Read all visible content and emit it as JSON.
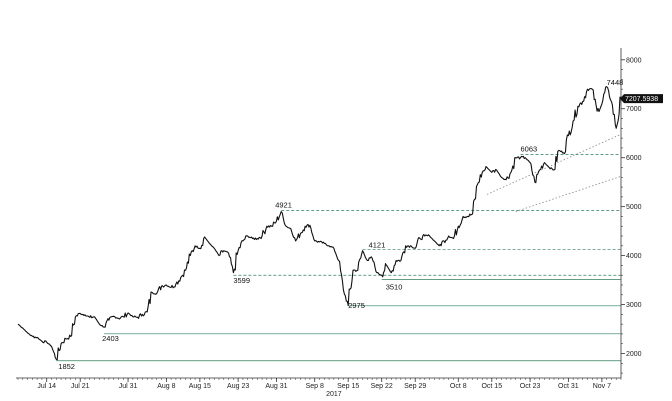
{
  "chart_data": {
    "type": "line",
    "title": "",
    "xlabel": "",
    "ylabel": "",
    "year_label": "2017",
    "ylim": [
      1500,
      8200
    ],
    "xlim": [
      "2017-07-08",
      "2017-11-11"
    ],
    "yticks": [
      2000,
      3000,
      4000,
      5000,
      6000,
      7000,
      8000
    ],
    "xticks": [
      {
        "date": "2017-07-14",
        "label": "Jul 14"
      },
      {
        "date": "2017-07-21",
        "label": "Jul 21"
      },
      {
        "date": "2017-07-31",
        "label": "Jul 31"
      },
      {
        "date": "2017-08-08",
        "label": "Aug 8"
      },
      {
        "date": "2017-08-15",
        "label": "Aug 15"
      },
      {
        "date": "2017-08-23",
        "label": "Aug 23"
      },
      {
        "date": "2017-08-31",
        "label": "Aug 31"
      },
      {
        "date": "2017-09-08",
        "label": "Sep 8"
      },
      {
        "date": "2017-09-15",
        "label": "Sep 15"
      },
      {
        "date": "2017-09-22",
        "label": "Sep 22"
      },
      {
        "date": "2017-09-29",
        "label": "Sep 29"
      },
      {
        "date": "2017-10-08",
        "label": "Oct 8"
      },
      {
        "date": "2017-10-15",
        "label": "Oct 15"
      },
      {
        "date": "2017-10-23",
        "label": "Oct 23"
      },
      {
        "date": "2017-10-31",
        "label": "Oct 31"
      },
      {
        "date": "2017-11-07",
        "label": "Nov 7"
      }
    ],
    "series": [
      {
        "values": [
          [
            "2017-07-08",
            2600
          ],
          [
            "2017-07-09",
            2520
          ],
          [
            "2017-07-10",
            2420
          ],
          [
            "2017-07-11",
            2350
          ],
          [
            "2017-07-12",
            2330
          ],
          [
            "2017-07-13",
            2250
          ],
          [
            "2017-07-14",
            2230
          ],
          [
            "2017-07-15",
            2150
          ],
          [
            "2017-07-16",
            1880
          ],
          [
            "2017-07-17",
            2200
          ],
          [
            "2017-07-18",
            2300
          ],
          [
            "2017-07-19",
            2350
          ],
          [
            "2017-07-20",
            2750
          ],
          [
            "2017-07-21",
            2820
          ],
          [
            "2017-07-22",
            2790
          ],
          [
            "2017-07-23",
            2740
          ],
          [
            "2017-07-24",
            2750
          ],
          [
            "2017-07-25",
            2600
          ],
          [
            "2017-07-26",
            2540
          ],
          [
            "2017-07-27",
            2680
          ],
          [
            "2017-07-28",
            2760
          ],
          [
            "2017-07-29",
            2720
          ],
          [
            "2017-07-30",
            2750
          ],
          [
            "2017-07-31",
            2830
          ],
          [
            "2017-08-01",
            2750
          ],
          [
            "2017-08-02",
            2740
          ],
          [
            "2017-08-03",
            2800
          ],
          [
            "2017-08-04",
            2850
          ],
          [
            "2017-08-05",
            3250
          ],
          [
            "2017-08-06",
            3230
          ],
          [
            "2017-08-07",
            3380
          ],
          [
            "2017-08-08",
            3400
          ],
          [
            "2017-08-09",
            3350
          ],
          [
            "2017-08-10",
            3420
          ],
          [
            "2017-08-11",
            3550
          ],
          [
            "2017-08-12",
            3700
          ],
          [
            "2017-08-13",
            4000
          ],
          [
            "2017-08-14",
            4200
          ],
          [
            "2017-08-15",
            4150
          ],
          [
            "2017-08-16",
            4380
          ],
          [
            "2017-08-17",
            4250
          ],
          [
            "2017-08-18",
            4150
          ],
          [
            "2017-08-19",
            4000
          ],
          [
            "2017-08-20",
            4100
          ],
          [
            "2017-08-21",
            4050
          ],
          [
            "2017-08-22",
            3650
          ],
          [
            "2017-08-23",
            4100
          ],
          [
            "2017-08-24",
            4300
          ],
          [
            "2017-08-25",
            4400
          ],
          [
            "2017-08-26",
            4350
          ],
          [
            "2017-08-27",
            4350
          ],
          [
            "2017-08-28",
            4400
          ],
          [
            "2017-08-29",
            4600
          ],
          [
            "2017-08-30",
            4600
          ],
          [
            "2017-08-31",
            4700
          ],
          [
            "2017-09-01",
            4900
          ],
          [
            "2017-09-02",
            4600
          ],
          [
            "2017-09-03",
            4550
          ],
          [
            "2017-09-04",
            4300
          ],
          [
            "2017-09-05",
            4450
          ],
          [
            "2017-09-06",
            4600
          ],
          [
            "2017-09-07",
            4620
          ],
          [
            "2017-09-08",
            4300
          ],
          [
            "2017-09-09",
            4280
          ],
          [
            "2017-09-10",
            4250
          ],
          [
            "2017-09-11",
            4200
          ],
          [
            "2017-09-12",
            4150
          ],
          [
            "2017-09-13",
            3900
          ],
          [
            "2017-09-14",
            3300
          ],
          [
            "2017-09-15",
            2980
          ],
          [
            "2017-09-16",
            3700
          ],
          [
            "2017-09-17",
            3700
          ],
          [
            "2017-09-18",
            4100
          ],
          [
            "2017-09-19",
            3900
          ],
          [
            "2017-09-20",
            3950
          ],
          [
            "2017-09-21",
            3650
          ],
          [
            "2017-09-22",
            3600
          ],
          [
            "2017-09-23",
            3800
          ],
          [
            "2017-09-24",
            3650
          ],
          [
            "2017-09-25",
            3900
          ],
          [
            "2017-09-26",
            3900
          ],
          [
            "2017-09-27",
            4200
          ],
          [
            "2017-09-28",
            4200
          ],
          [
            "2017-09-29",
            4150
          ],
          [
            "2017-09-30",
            4350
          ],
          [
            "2017-10-01",
            4400
          ],
          [
            "2017-10-02",
            4400
          ],
          [
            "2017-10-03",
            4300
          ],
          [
            "2017-10-04",
            4200
          ],
          [
            "2017-10-05",
            4300
          ],
          [
            "2017-10-06",
            4400
          ],
          [
            "2017-10-07",
            4350
          ],
          [
            "2017-10-08",
            4600
          ],
          [
            "2017-10-09",
            4800
          ],
          [
            "2017-10-10",
            4800
          ],
          [
            "2017-10-11",
            4850
          ],
          [
            "2017-10-12",
            5450
          ],
          [
            "2017-10-13",
            5700
          ],
          [
            "2017-10-14",
            5800
          ],
          [
            "2017-10-15",
            5700
          ],
          [
            "2017-10-16",
            5750
          ],
          [
            "2017-10-17",
            5600
          ],
          [
            "2017-10-18",
            5550
          ],
          [
            "2017-10-19",
            5700
          ],
          [
            "2017-10-20",
            6000
          ],
          [
            "2017-10-21",
            6000
          ],
          [
            "2017-10-22",
            6000
          ],
          [
            "2017-10-23",
            5900
          ],
          [
            "2017-10-24",
            5500
          ],
          [
            "2017-10-25",
            5750
          ],
          [
            "2017-10-26",
            5900
          ],
          [
            "2017-10-27",
            5800
          ],
          [
            "2017-10-28",
            5750
          ],
          [
            "2017-10-29",
            6150
          ],
          [
            "2017-10-30",
            6100
          ],
          [
            "2017-10-31",
            6450
          ],
          [
            "2017-11-01",
            6750
          ],
          [
            "2017-11-02",
            7050
          ],
          [
            "2017-11-03",
            7150
          ],
          [
            "2017-11-04",
            7400
          ],
          [
            "2017-11-05",
            7400
          ],
          [
            "2017-11-06",
            6950
          ],
          [
            "2017-11-07",
            7100
          ],
          [
            "2017-11-08",
            7450
          ],
          [
            "2017-11-09",
            7150
          ],
          [
            "2017-11-10",
            6600
          ],
          [
            "2017-11-11",
            7208
          ]
        ]
      }
    ],
    "support_levels": [
      {
        "value": 1852,
        "style": "solid",
        "color": "#2e7d5b"
      },
      {
        "value": 2403,
        "style": "solid",
        "color": "#2e7d5b"
      },
      {
        "value": 2975,
        "style": "solid",
        "color": "#2e7d5b"
      },
      {
        "value": 3510,
        "style": "solid",
        "color": "#2e7d5b"
      },
      {
        "value": 3599,
        "style": "dashed",
        "color": "#2e7d5b"
      },
      {
        "value": 4121,
        "style": "dashed",
        "color": "#2e7d5b"
      },
      {
        "value": 4921,
        "style": "dashed",
        "color": "#2e7d5b"
      },
      {
        "value": 6063,
        "style": "dashed",
        "color": "#2e7d5b"
      }
    ],
    "trend_lines": [
      {
        "from": [
          "2017-10-14",
          5250
        ],
        "to": [
          "2017-11-11",
          6480
        ],
        "style": "dotted",
        "color": "#888888"
      },
      {
        "from": [
          "2017-10-20",
          4900
        ],
        "to": [
          "2017-11-11",
          5620
        ],
        "style": "dotted",
        "color": "#888888"
      }
    ],
    "annotations": [
      {
        "label": "1852",
        "date": "2017-07-16",
        "value": 1852
      },
      {
        "label": "2403",
        "date": "2017-07-26",
        "value": 2403
      },
      {
        "label": "3599",
        "date": "2017-08-22",
        "value": 3599
      },
      {
        "label": "4921",
        "date": "2017-09-01",
        "value": 4921
      },
      {
        "label": "2975",
        "date": "2017-09-15",
        "value": 2975
      },
      {
        "label": "4121",
        "date": "2017-09-18",
        "value": 4121
      },
      {
        "label": "3510",
        "date": "2017-09-22",
        "value": 3510
      },
      {
        "label": "6063",
        "date": "2017-10-21",
        "value": 6063
      },
      {
        "label": "7448",
        "date": "2017-11-08",
        "value": 7448
      }
    ],
    "last_price": {
      "label": "7207.5938",
      "value": 7207.5938
    },
    "colors": {
      "line": "#111111",
      "support": "#2e7d5b",
      "trend": "#888888",
      "axis": "#333333",
      "price_box": "#111111"
    },
    "grid": false,
    "axis_position": "right"
  }
}
